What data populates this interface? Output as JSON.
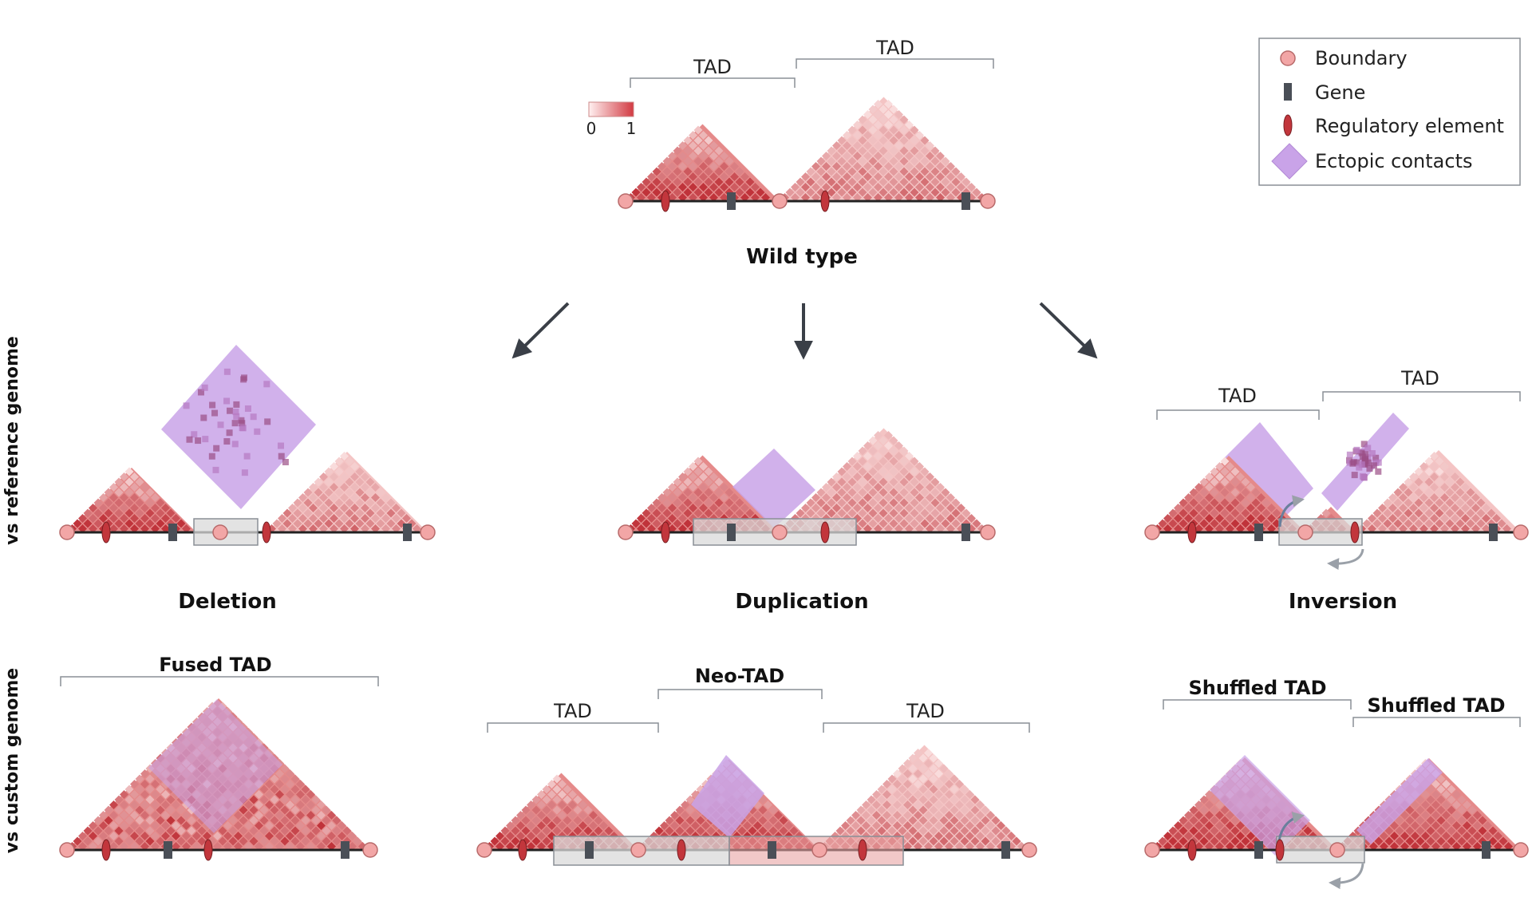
{
  "colorbar": {
    "min": "0",
    "max": "1"
  },
  "legend": {
    "boundary": "Boundary",
    "gene": "Gene",
    "regulatory": "Regulatory element",
    "ectopic": "Ectopic contacts"
  },
  "wildtype": {
    "title": "Wild type",
    "tad_left": "TAD",
    "tad_right": "TAD"
  },
  "row_labels": {
    "reference": "vs reference genome",
    "custom": "vs custom genome"
  },
  "deletion": {
    "title": "Deletion",
    "custom_label": "Fused TAD"
  },
  "duplication": {
    "title": "Duplication",
    "custom_left": "TAD",
    "custom_mid": "Neo-TAD",
    "custom_right": "TAD"
  },
  "inversion": {
    "title": "Inversion",
    "tad_left": "TAD",
    "tad_right": "TAD",
    "custom_left": "Shuffled TAD",
    "custom_right": "Shuffled TAD"
  },
  "colors": {
    "heat_low": "#f9dcdc",
    "heat_high": "#c0333a",
    "boundary": "#f2a6a6",
    "gene": "#4a4f57",
    "regulatory": "#c2363c",
    "ectopic": "#c9a3e8",
    "arrow": "#3a3f47"
  }
}
